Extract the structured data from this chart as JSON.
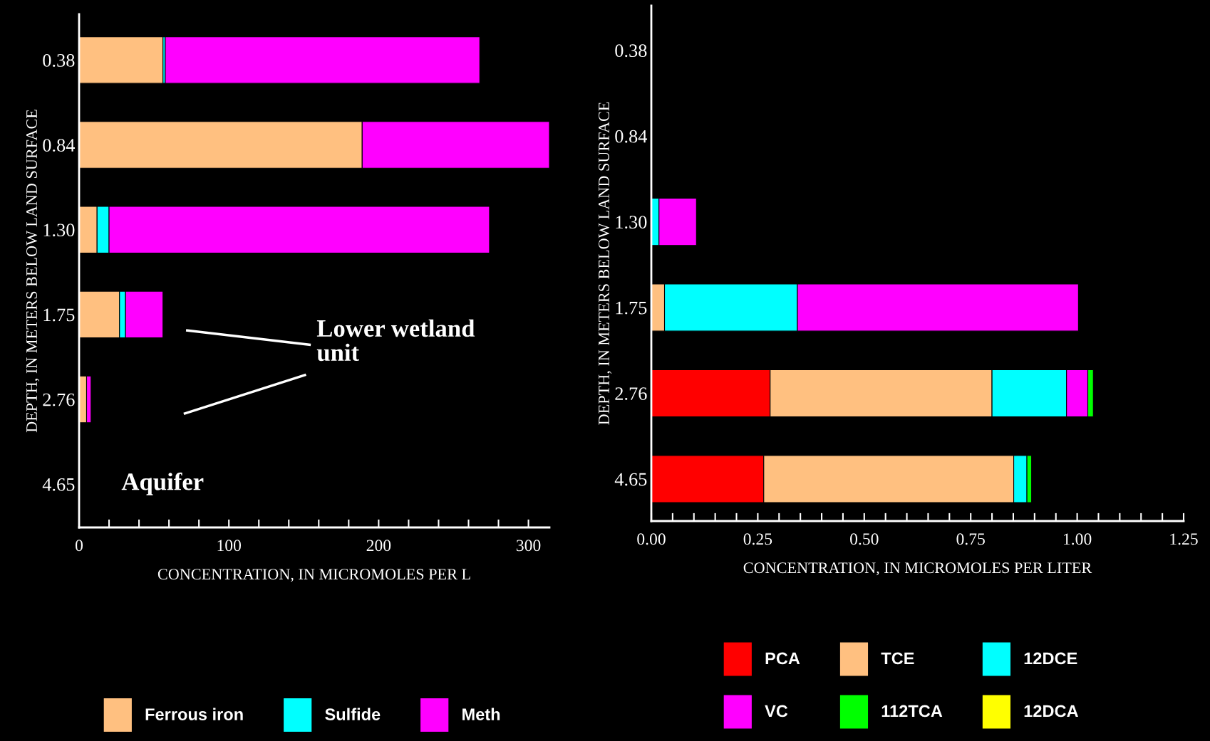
{
  "chart_data": [
    {
      "type": "bar",
      "orientation": "horizontal",
      "stacked": true,
      "xlabel": "CONCENTRATION, IN MICROMOLES PER L",
      "ylabel": "DEPTH, IN METERS BELOW LAND SURFACE",
      "categories": [
        "0.38",
        "0.84",
        "1.30",
        "1.75",
        "2.76",
        "4.65"
      ],
      "series": [
        {
          "name": "Ferrous iron",
          "color": "#ffc080",
          "values": [
            56,
            189,
            12,
            27,
            5,
            null
          ]
        },
        {
          "name": "Sulfide",
          "color": "#00ffff",
          "values": [
            1.5,
            null,
            8,
            4,
            null,
            null
          ]
        },
        {
          "name": "Meth",
          "color": "#ff00ff",
          "values": [
            210,
            125,
            254,
            25,
            3,
            null
          ]
        }
      ],
      "xlim": [
        0,
        314
      ],
      "xticks": [
        0,
        {
          "value": 20,
          "label": null
        },
        {
          "value": 40,
          "label": null
        },
        {
          "value": 60,
          "label": null
        },
        {
          "value": 80,
          "label": null
        },
        100,
        {
          "value": 120,
          "label": null
        },
        {
          "value": 140,
          "label": null
        },
        {
          "value": 160,
          "label": null
        },
        {
          "value": 180,
          "label": null
        },
        200,
        {
          "value": 220,
          "label": null
        },
        {
          "value": 240,
          "label": null
        },
        {
          "value": 260,
          "label": null
        },
        {
          "value": 280,
          "label": null
        },
        300
      ],
      "annotations": [
        "Lower wetland unit",
        "Aquifer"
      ],
      "legend": "bottom",
      "grid": false
    },
    {
      "type": "bar",
      "orientation": "horizontal",
      "stacked": true,
      "xlabel": "CONCENTRATION, IN MICROMOLES PER LITER",
      "ylabel": "DEPTH, IN METERS BELOW LAND SURFACE",
      "categories": [
        "0.38",
        "0.84",
        "1.30",
        "1.75",
        "2.76",
        "4.65"
      ],
      "series": [
        {
          "name": "PCA",
          "color": "#ff0000",
          "values": [
            null,
            null,
            null,
            null,
            0.279,
            0.264
          ]
        },
        {
          "name": "TCE",
          "color": "#ffc080",
          "values": [
            null,
            null,
            null,
            0.031,
            0.521,
            0.587
          ]
        },
        {
          "name": "12DCE",
          "color": "#00ffff",
          "values": [
            null,
            null,
            0.018,
            0.312,
            0.175,
            0.031
          ]
        },
        {
          "name": "VC",
          "color": "#ff00ff",
          "values": [
            null,
            null,
            0.088,
            0.66,
            0.05,
            null
          ]
        },
        {
          "name": "112TCA",
          "color": "#00ff00",
          "values": [
            null,
            null,
            null,
            null,
            0.013,
            0.011
          ]
        },
        {
          "name": "12DCA",
          "color": "#ffff00",
          "values": [
            null,
            null,
            null,
            null,
            null,
            null
          ]
        }
      ],
      "xlim": [
        0,
        1.25
      ],
      "xticks": [
        {
          "value": 0,
          "label": "0.00"
        },
        {
          "value": 0.05,
          "label": null
        },
        {
          "value": 0.1,
          "label": null
        },
        {
          "value": 0.15,
          "label": null
        },
        {
          "value": 0.2,
          "label": null
        },
        {
          "value": 0.25,
          "label": "0.25"
        },
        {
          "value": 0.3,
          "label": null
        },
        {
          "value": 0.35,
          "label": null
        },
        {
          "value": 0.4,
          "label": null
        },
        {
          "value": 0.45,
          "label": null
        },
        {
          "value": 0.5,
          "label": "0.50"
        },
        {
          "value": 0.55,
          "label": null
        },
        {
          "value": 0.6,
          "label": null
        },
        {
          "value": 0.65,
          "label": null
        },
        {
          "value": 0.7,
          "label": null
        },
        {
          "value": 0.75,
          "label": "0.75"
        },
        {
          "value": 0.8,
          "label": null
        },
        {
          "value": 0.85,
          "label": null
        },
        {
          "value": 0.9,
          "label": null
        },
        {
          "value": 0.95,
          "label": null
        },
        {
          "value": 1.0,
          "label": "1.00"
        },
        {
          "value": 1.05,
          "label": null
        },
        {
          "value": 1.1,
          "label": null
        },
        {
          "value": 1.15,
          "label": null
        },
        {
          "value": 1.2,
          "label": null
        },
        {
          "value": 1.25,
          "label": "1.25"
        }
      ],
      "legend": "bottom",
      "grid": false
    }
  ]
}
